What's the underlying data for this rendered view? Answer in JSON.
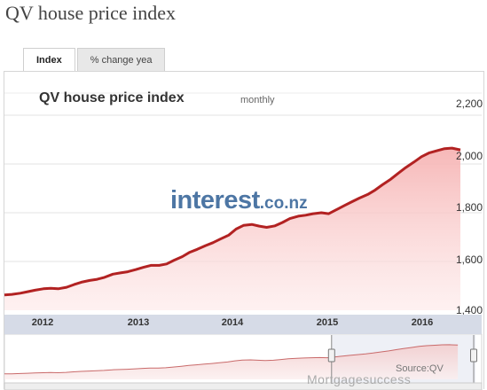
{
  "page_title": "QV house price index",
  "tabs": [
    {
      "label": "Index",
      "active": true
    },
    {
      "label": "% change yea",
      "active": false
    }
  ],
  "chart_data": {
    "type": "area",
    "title": "QV house price index",
    "subtitle": "monthly",
    "x_tick_labels": [
      "2012",
      "2013",
      "2014",
      "2015",
      "2016"
    ],
    "y_tick_labels": [
      "2,200",
      "2,000",
      "1,800",
      "1,600",
      "1,400"
    ],
    "ylim": [
      1400,
      2200
    ],
    "xlim": [
      2011.75,
      2016.9
    ],
    "grid": true,
    "x": [
      2011.75,
      2011.83,
      2011.92,
      2012.0,
      2012.08,
      2012.17,
      2012.25,
      2012.33,
      2012.42,
      2012.5,
      2012.58,
      2012.67,
      2012.75,
      2012.83,
      2012.92,
      2013.0,
      2013.08,
      2013.17,
      2013.25,
      2013.33,
      2013.42,
      2013.5,
      2013.58,
      2013.67,
      2013.75,
      2013.83,
      2013.92,
      2014.0,
      2014.08,
      2014.17,
      2014.25,
      2014.33,
      2014.42,
      2014.5,
      2014.58,
      2014.67,
      2014.75,
      2014.83,
      2014.92,
      2015.0,
      2015.08,
      2015.17,
      2015.25,
      2015.33,
      2015.42,
      2015.5,
      2015.58,
      2015.67,
      2015.75,
      2015.83,
      2015.92,
      2016.0,
      2016.08,
      2016.17,
      2016.25,
      2016.33,
      2016.42,
      2016.5,
      2016.58,
      2016.67
    ],
    "series": [
      {
        "values": [
          1463,
          1465,
          1470,
          1476,
          1482,
          1488,
          1490,
          1488,
          1494,
          1505,
          1515,
          1522,
          1527,
          1535,
          1548,
          1553,
          1558,
          1567,
          1576,
          1584,
          1584,
          1590,
          1605,
          1620,
          1638,
          1650,
          1665,
          1677,
          1692,
          1708,
          1733,
          1748,
          1752,
          1745,
          1740,
          1746,
          1760,
          1776,
          1786,
          1790,
          1796,
          1800,
          1796,
          1812,
          1830,
          1845,
          1860,
          1875,
          1893,
          1915,
          1938,
          1962,
          1985,
          2008,
          2030,
          2045,
          2055,
          2063,
          2065,
          2058
        ]
      }
    ],
    "navigator": {
      "source_label": "Source:QV"
    }
  },
  "watermark": {
    "main": "interest",
    "tld": ".co.nz"
  },
  "footer_watermark": "Mortgagesuccess",
  "colors": {
    "line": "#b22222",
    "fill_top": "#f6b4b4",
    "band": "#d6dbe7",
    "watermark": "#2f5f95"
  }
}
